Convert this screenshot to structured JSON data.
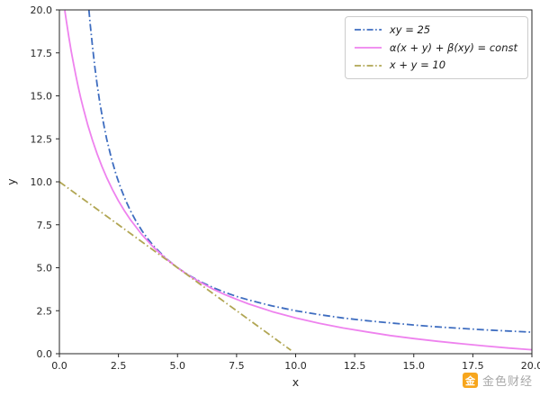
{
  "figure": {
    "background": "#ffffff",
    "spine_color": "#262626",
    "tick_label_color": "#262626"
  },
  "chart_data": {
    "type": "line",
    "title": "",
    "xlabel": "x",
    "ylabel": "y",
    "xlim": [
      0,
      20
    ],
    "ylim": [
      0,
      20
    ],
    "xticks": [
      0,
      2.5,
      5,
      7.5,
      10,
      12.5,
      15,
      17.5,
      20
    ],
    "xtick_labels": [
      "0.0",
      "2.5",
      "5.0",
      "7.5",
      "10.0",
      "12.5",
      "15.0",
      "17.5",
      "20.0"
    ],
    "yticks": [
      0,
      2.5,
      5,
      7.5,
      10,
      12.5,
      15,
      17.5,
      20
    ],
    "ytick_labels": [
      "0.0",
      "2.5",
      "5.0",
      "7.5",
      "10.0",
      "12.5",
      "15.0",
      "17.5",
      "20.0"
    ],
    "grid": false,
    "legend_position": "upper right",
    "series": [
      {
        "id": "xy-25",
        "label": "xy = 25",
        "color": "#3e6dc0",
        "style": "dashdot",
        "points": [
          [
            1.25,
            20
          ],
          [
            1.3,
            19.23
          ],
          [
            1.4,
            17.86
          ],
          [
            1.5,
            16.67
          ],
          [
            1.6,
            15.63
          ],
          [
            1.7,
            14.71
          ],
          [
            1.8,
            13.89
          ],
          [
            1.9,
            13.16
          ],
          [
            2,
            12.5
          ],
          [
            2.2,
            11.36
          ],
          [
            2.4,
            10.42
          ],
          [
            2.6,
            9.62
          ],
          [
            2.8,
            8.93
          ],
          [
            3,
            8.33
          ],
          [
            3.25,
            7.69
          ],
          [
            3.5,
            7.14
          ],
          [
            3.75,
            6.67
          ],
          [
            4,
            6.25
          ],
          [
            4.5,
            5.56
          ],
          [
            5,
            5
          ],
          [
            5.5,
            4.55
          ],
          [
            6,
            4.17
          ],
          [
            6.5,
            3.85
          ],
          [
            7,
            3.57
          ],
          [
            7.5,
            3.33
          ],
          [
            8,
            3.13
          ],
          [
            9,
            2.78
          ],
          [
            10,
            2.5
          ],
          [
            11,
            2.27
          ],
          [
            12,
            2.08
          ],
          [
            13,
            1.92
          ],
          [
            14,
            1.79
          ],
          [
            15,
            1.67
          ],
          [
            16,
            1.56
          ],
          [
            17,
            1.47
          ],
          [
            18,
            1.39
          ],
          [
            19,
            1.32
          ],
          [
            20,
            1.25
          ]
        ]
      },
      {
        "id": "alpha-beta-const",
        "label": "α(x + y) + β(xy) = const",
        "color": "#ee82ee",
        "style": "solid",
        "points": [
          [
            0.23,
            19.97
          ],
          [
            0.3,
            19.3
          ],
          [
            0.4,
            18.42
          ],
          [
            0.5,
            17.6
          ],
          [
            0.6,
            16.85
          ],
          [
            0.7,
            16.15
          ],
          [
            0.8,
            15.5
          ],
          [
            0.9,
            14.9
          ],
          [
            1,
            14.33
          ],
          [
            1.2,
            13.31
          ],
          [
            1.4,
            12.41
          ],
          [
            1.6,
            11.61
          ],
          [
            1.8,
            10.89
          ],
          [
            2,
            10.25
          ],
          [
            2.25,
            9.53
          ],
          [
            2.5,
            8.89
          ],
          [
            2.75,
            8.32
          ],
          [
            3,
            7.8
          ],
          [
            3.5,
            6.91
          ],
          [
            4,
            6.17
          ],
          [
            4.5,
            5.54
          ],
          [
            5,
            5
          ],
          [
            5.5,
            4.53
          ],
          [
            6,
            4.13
          ],
          [
            6.5,
            3.76
          ],
          [
            7,
            3.44
          ],
          [
            7.5,
            3.16
          ],
          [
            8,
            2.9
          ],
          [
            9,
            2.45
          ],
          [
            10,
            2.08
          ],
          [
            11,
            1.77
          ],
          [
            12,
            1.5
          ],
          [
            13,
            1.27
          ],
          [
            14,
            1.06
          ],
          [
            15,
            0.88
          ],
          [
            16,
            0.72
          ],
          [
            17,
            0.58
          ],
          [
            18,
            0.45
          ],
          [
            19,
            0.33
          ],
          [
            20,
            0.23
          ]
        ]
      },
      {
        "id": "x-plus-y-10",
        "label": "x + y = 10",
        "color": "#b1a653",
        "style": "dashdot",
        "points": [
          [
            0,
            10
          ],
          [
            9.8,
            0.2
          ]
        ]
      }
    ]
  },
  "watermark": {
    "text": "金色财经",
    "icon_text": "金",
    "icon_color": "#f7a61d",
    "text_color": "#a8a8a8"
  }
}
